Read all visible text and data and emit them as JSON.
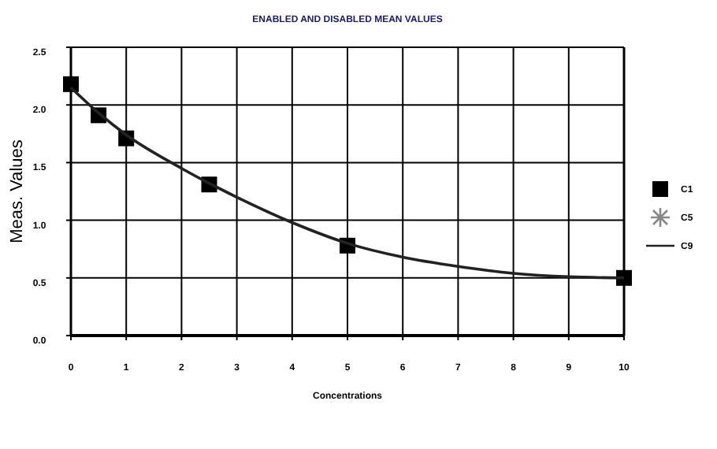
{
  "chart_data": {
    "type": "scatter",
    "title": "ENABLED AND DISABLED MEAN VALUES",
    "xlabel": "Concentrations",
    "ylabel": "Meas. Values",
    "xlim": [
      0,
      10
    ],
    "xticks": [
      0,
      1,
      2,
      3,
      4,
      5,
      6,
      7,
      8,
      9,
      10
    ],
    "ylim": [
      0,
      2.5
    ],
    "yticks": [
      {
        "value": 0,
        "label": "0.0"
      },
      {
        "value": 0.5,
        "label": "0.5"
      },
      {
        "value": 1,
        "label": "1.0"
      },
      {
        "value": 1.5,
        "label": "1.5"
      },
      {
        "value": 2,
        "label": "2.0"
      },
      {
        "value": 2.5,
        "label": "2.5"
      }
    ],
    "grid": true,
    "legend": "right",
    "series": [
      {
        "name": "C1",
        "marker": "square",
        "color": "#000000",
        "x": [
          0,
          0.5,
          1,
          2.5,
          5,
          10
        ],
        "values": [
          2.18,
          1.91,
          1.71,
          1.31,
          0.78,
          0.5
        ]
      },
      {
        "name": "C5",
        "marker": "star",
        "color": "#888888"
      },
      {
        "name": "C9",
        "type": "line",
        "marker": "none",
        "color": "#222222",
        "x": [
          0,
          0.5,
          1,
          2,
          3,
          4,
          5,
          6,
          7,
          8,
          9,
          10
        ],
        "values": [
          2.15,
          1.93,
          1.74,
          1.45,
          1.2,
          0.98,
          0.8,
          0.68,
          0.6,
          0.54,
          0.51,
          0.5
        ]
      }
    ]
  }
}
